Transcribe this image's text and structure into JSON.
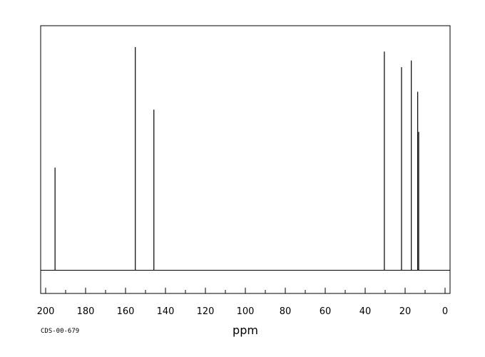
{
  "chart_data": {
    "type": "line",
    "title": "",
    "xlabel": "ppm",
    "ylabel": "",
    "xlim": [
      -2.5,
      202.5
    ],
    "x_reversed": true,
    "major_ticks": [
      200,
      180,
      160,
      140,
      120,
      100,
      80,
      60,
      40,
      20,
      0
    ],
    "tick_labels": [
      "200",
      "180",
      "160",
      "140",
      "120",
      "100",
      "80",
      "60",
      "40",
      "20",
      "0"
    ],
    "minor_tick_step": 10,
    "grid": false,
    "peaks": [
      {
        "ppm": 195.3,
        "intensity": 0.46
      },
      {
        "ppm": 155.1,
        "intensity": 1.0
      },
      {
        "ppm": 145.8,
        "intensity": 0.72
      },
      {
        "ppm": 30.4,
        "intensity": 0.98
      },
      {
        "ppm": 21.8,
        "intensity": 0.91
      },
      {
        "ppm": 16.9,
        "intensity": 0.94
      },
      {
        "ppm": 13.7,
        "intensity": 0.8
      },
      {
        "ppm": 13.2,
        "intensity": 0.62
      }
    ],
    "line_color": "#000000"
  },
  "footer": {
    "code": "CDS-00-679"
  }
}
